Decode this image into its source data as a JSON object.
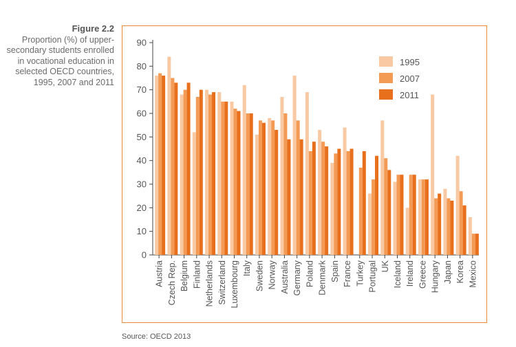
{
  "caption": {
    "figure_label": "Figure 2.2",
    "text": "Proportion (%) of upper-secondary students enrolled in vocational education in selected OECD countries, 1995, 2007 and 2011"
  },
  "source": "Source: OECD 2013",
  "colors": {
    "frame": "#ef8a3a",
    "series_1995": "#f9c9a3",
    "series_2007": "#f39a55",
    "series_2011": "#e86f1c",
    "axis": "#444444"
  },
  "chart_data": {
    "type": "bar",
    "title": "",
    "xlabel": "",
    "ylabel": "",
    "ylim": [
      0,
      90
    ],
    "yticks": [
      0,
      10,
      20,
      30,
      40,
      50,
      60,
      70,
      80,
      90
    ],
    "legend_position": "top-right",
    "categories": [
      "Austria",
      "Czech Rep.",
      "Belgium",
      "Finland",
      "Netherlands",
      "Switzerland",
      "Luxembourg",
      "Italy",
      "Sweden",
      "Norway",
      "Australia",
      "Germany",
      "Poland",
      "Denmark",
      "Spain",
      "France",
      "Turkey",
      "Portugal",
      "UK",
      "Iceland",
      "Ireland",
      "Greece",
      "Hungary",
      "Japan",
      "Korea",
      "Mexico"
    ],
    "series": [
      {
        "name": "1995",
        "values": [
          76,
          84,
          68,
          52,
          70,
          69,
          65,
          72,
          51,
          58,
          67,
          76,
          69,
          53,
          39,
          54,
          0,
          26,
          57,
          31,
          20,
          32,
          68,
          28,
          42,
          16
        ]
      },
      {
        "name": "2007",
        "values": [
          77,
          75,
          70,
          67,
          68,
          65,
          62,
          60,
          57,
          57,
          60,
          57,
          44,
          48,
          43,
          44,
          37,
          32,
          41,
          34,
          34,
          32,
          24,
          24,
          27,
          9
        ]
      },
      {
        "name": "2011",
        "values": [
          76,
          73,
          73,
          70,
          69,
          65,
          61,
          60,
          56,
          53,
          49,
          49,
          48,
          46,
          45,
          45,
          44,
          42,
          36,
          34,
          34,
          32,
          26,
          23,
          21,
          9
        ]
      }
    ]
  }
}
